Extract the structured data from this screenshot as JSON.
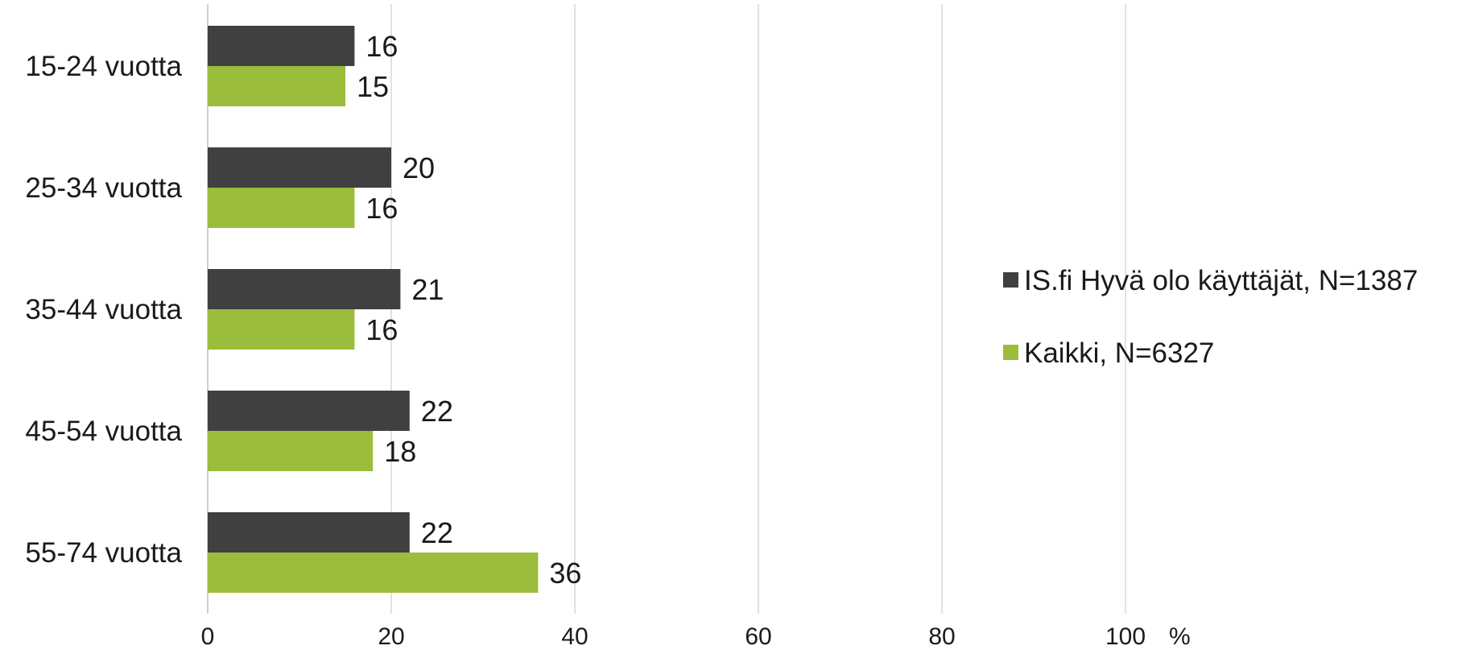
{
  "chart_data": {
    "type": "bar",
    "orientation": "horizontal",
    "categories": [
      "15-24 vuotta",
      "25-34 vuotta",
      "35-44 vuotta",
      "45-54 vuotta",
      "55-74 vuotta"
    ],
    "series": [
      {
        "name": "IS.fi Hyvä olo käyttäjät, N=1387",
        "color": "#404040",
        "values": [
          16,
          20,
          21,
          22,
          22
        ]
      },
      {
        "name": "Kaikki, N=6327",
        "color": "#9bbd3c",
        "values": [
          15,
          16,
          16,
          18,
          36
        ]
      }
    ],
    "x_ticks": [
      "0",
      "20",
      "40",
      "60",
      "80",
      "100"
    ],
    "x_unit": "%",
    "xlim": [
      0,
      100
    ],
    "grid": true,
    "legend_position": "right"
  }
}
